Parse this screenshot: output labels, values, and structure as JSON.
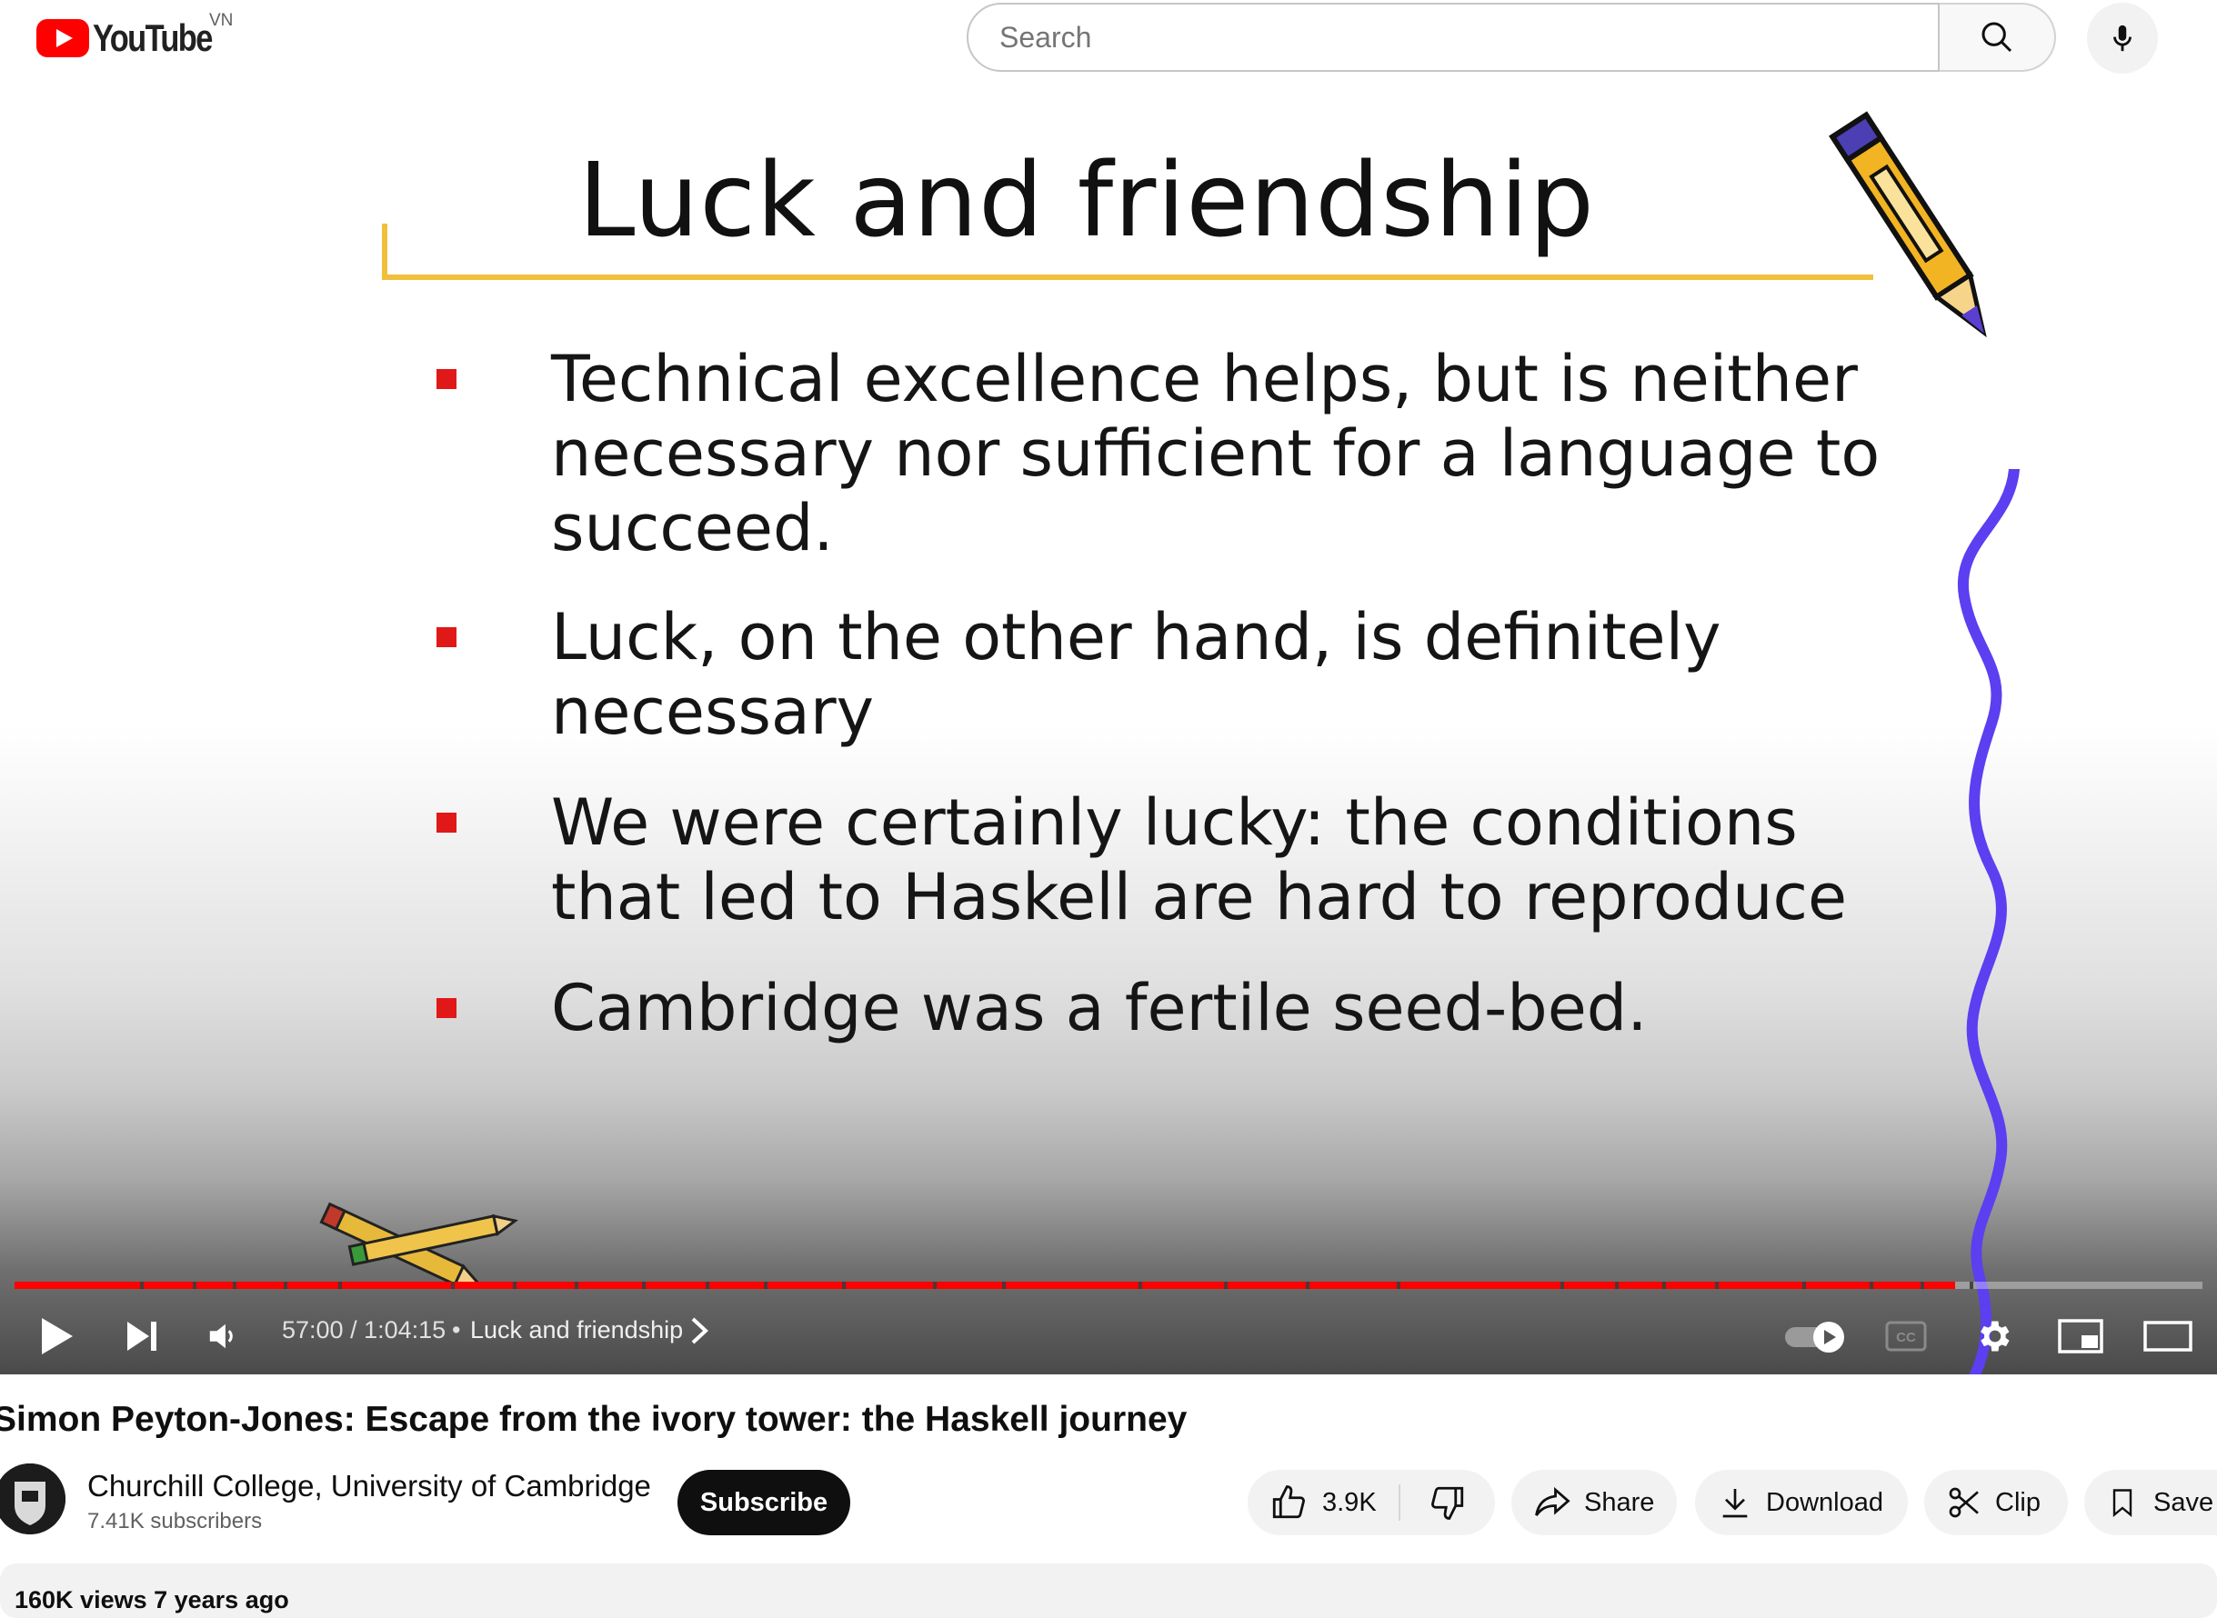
{
  "header": {
    "logo_text": "YouTube",
    "region": "VN",
    "search_placeholder": "Search"
  },
  "slide": {
    "title": "Luck and friendship",
    "bullets": [
      "Technical excellence helps, but is neither necessary nor sufficient for a language to succeed.",
      "Luck, on the other hand, is definitely necessary",
      "We were certainly lucky: the conditions that led to Haskell are hard to reproduce",
      "Cambridge was a fertile seed-bed."
    ]
  },
  "player": {
    "time": "57:00 / 1:04:15",
    "separator": "•",
    "chapter": "Luck and friendship",
    "progress": 0.887,
    "colors": {
      "progress": "#ff0000"
    }
  },
  "video": {
    "title": "Simon Peyton-Jones: Escape from the ivory tower: the Haskell journey",
    "channel": "Churchill College, University of Cambridge",
    "subscribers": "7.41K subscribers",
    "subscribe_label": "Subscribe",
    "likes": "3.9K",
    "share_label": "Share",
    "download_label": "Download",
    "clip_label": "Clip",
    "save_label": "Save",
    "meta": "160K views  7 years ago"
  }
}
